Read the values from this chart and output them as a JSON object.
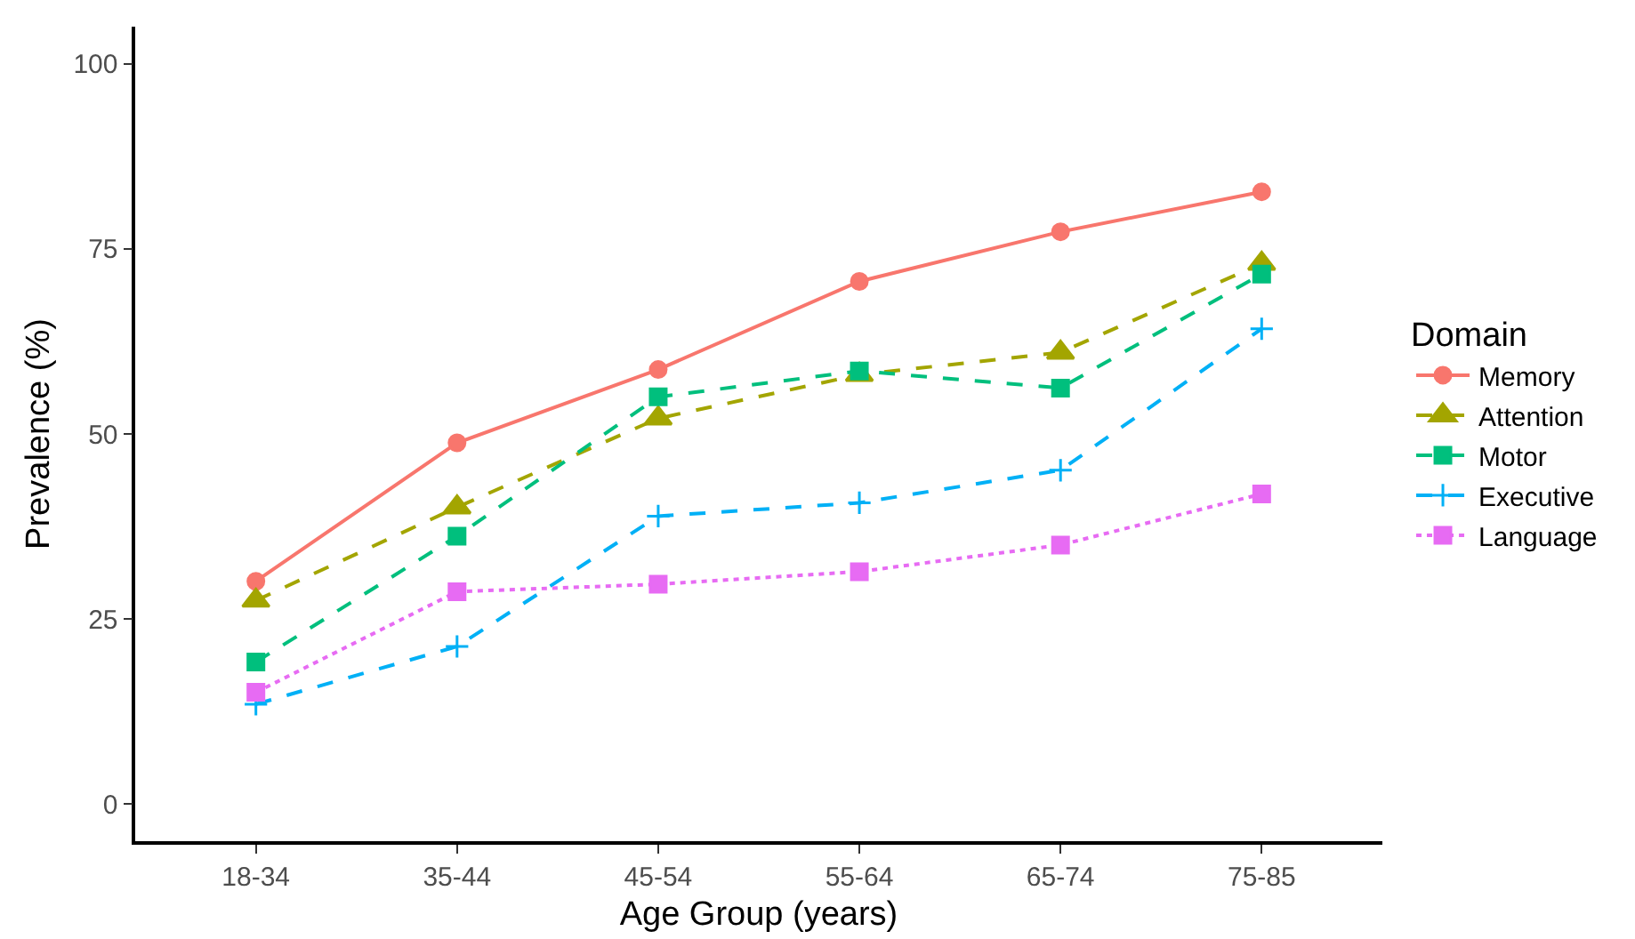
{
  "chart_data": {
    "type": "line",
    "xlabel": "Age Group (years)",
    "ylabel": "Prevalence (%)",
    "legend_title": "Domain",
    "categories": [
      "18-34",
      "35-44",
      "45-54",
      "55-64",
      "65-74",
      "75-85"
    ],
    "series": [
      {
        "name": "Memory",
        "color": "#f8766d",
        "marker": "circle",
        "line_style": "solid",
        "values": [
          30.1,
          48.8,
          58.7,
          70.6,
          77.3,
          82.7
        ]
      },
      {
        "name": "Attention",
        "color": "#a3a500",
        "marker": "triangle",
        "line_style": "dashed",
        "values": [
          27.5,
          40.1,
          52.1,
          58.0,
          61.0,
          73.0
        ]
      },
      {
        "name": "Motor",
        "color": "#00bf7d",
        "marker": "square",
        "line_style": "dashed",
        "values": [
          19.2,
          36.2,
          55.0,
          58.5,
          56.2,
          71.6
        ]
      },
      {
        "name": "Executive",
        "color": "#00b0f6",
        "marker": "cross",
        "line_style": "dashed",
        "values": [
          13.5,
          21.3,
          38.9,
          40.7,
          45.1,
          64.2
        ]
      },
      {
        "name": "Language",
        "color": "#e76bf3",
        "marker": "square",
        "line_style": "dotted",
        "values": [
          15.1,
          28.7,
          29.7,
          31.4,
          35.0,
          41.9
        ]
      }
    ],
    "ylim": [
      -5,
      105
    ],
    "yticks": [
      0,
      25,
      50,
      75,
      100
    ],
    "grid": false,
    "legend": "right"
  }
}
